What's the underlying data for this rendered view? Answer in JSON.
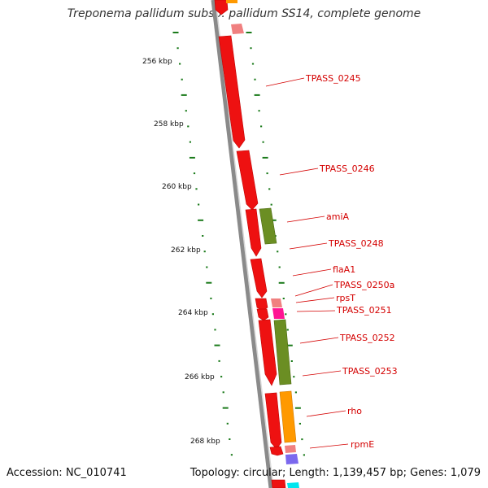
{
  "title": "Treponema pallidum subsp. pallidum SS14, complete genome",
  "footer": {
    "accession": "Accession: NC_010741",
    "summary": "Topology: circular; Length: 1,139,457 bp; Genes: 1,079"
  },
  "colors": {
    "backbone": "#888888",
    "cds": "#ff0000",
    "tick": "#1a7a1a",
    "label": "#d40000"
  },
  "ticks": [
    {
      "label": "256 kbp"
    },
    {
      "label": "258 kbp"
    },
    {
      "label": "260 kbp"
    },
    {
      "label": "262 kbp"
    },
    {
      "label": "264 kbp"
    },
    {
      "label": "266 kbp"
    },
    {
      "label": "268 kbp"
    }
  ],
  "genes": [
    {
      "name": "TPASS_0245"
    },
    {
      "name": "TPASS_0246"
    },
    {
      "name": "amiA"
    },
    {
      "name": "TPASS_0248"
    },
    {
      "name": "flaA1"
    },
    {
      "name": "TPASS_0250a"
    },
    {
      "name": "rpsT"
    },
    {
      "name": "TPASS_0251"
    },
    {
      "name": "TPASS_0252"
    },
    {
      "name": "TPASS_0253"
    },
    {
      "name": "rho"
    },
    {
      "name": "rpmE"
    }
  ]
}
